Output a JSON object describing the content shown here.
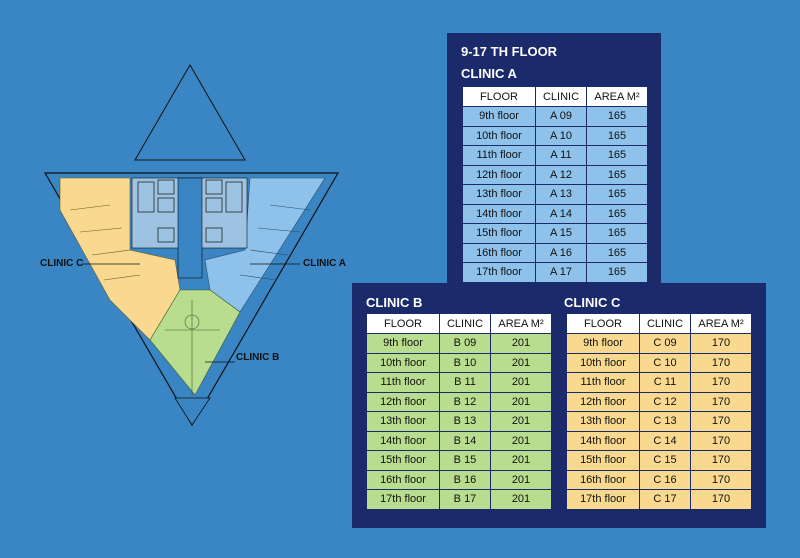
{
  "floor_heading": "9-17 TH FLOOR",
  "labels": {
    "clinic_a": "CLINIC A",
    "clinic_b": "CLINIC B",
    "clinic_c": "CLINIC C"
  },
  "columns": {
    "floor": "FLOOR",
    "clinic": "CLINIC",
    "area": "AREA M²"
  },
  "colors": {
    "background": "#3a86c4",
    "panel": "#1b2a6b",
    "clinic_a": "#8ec2ea",
    "clinic_b": "#b9dd8e",
    "clinic_c": "#f9d98f"
  },
  "clinic_a": {
    "title": "CLINIC A",
    "rows": [
      {
        "floor": "9th floor",
        "clinic": "A 09",
        "area": "165"
      },
      {
        "floor": "10th floor",
        "clinic": "A 10",
        "area": "165"
      },
      {
        "floor": "11th floor",
        "clinic": "A 11",
        "area": "165"
      },
      {
        "floor": "12th floor",
        "clinic": "A 12",
        "area": "165"
      },
      {
        "floor": "13th floor",
        "clinic": "A 13",
        "area": "165"
      },
      {
        "floor": "14th floor",
        "clinic": "A 14",
        "area": "165"
      },
      {
        "floor": "15th floor",
        "clinic": "A 15",
        "area": "165"
      },
      {
        "floor": "16th floor",
        "clinic": "A 16",
        "area": "165"
      },
      {
        "floor": "17th floor",
        "clinic": "A 17",
        "area": "165"
      }
    ]
  },
  "clinic_b": {
    "title": "CLINIC B",
    "rows": [
      {
        "floor": "9th floor",
        "clinic": "B 09",
        "area": "201"
      },
      {
        "floor": "10th floor",
        "clinic": "B 10",
        "area": "201"
      },
      {
        "floor": "11th floor",
        "clinic": "B 11",
        "area": "201"
      },
      {
        "floor": "12th floor",
        "clinic": "B 12",
        "area": "201"
      },
      {
        "floor": "13th floor",
        "clinic": "B 13",
        "area": "201"
      },
      {
        "floor": "14th floor",
        "clinic": "B 14",
        "area": "201"
      },
      {
        "floor": "15th floor",
        "clinic": "B 15",
        "area": "201"
      },
      {
        "floor": "16th floor",
        "clinic": "B 16",
        "area": "201"
      },
      {
        "floor": "17th floor",
        "clinic": "B 17",
        "area": "201"
      }
    ]
  },
  "clinic_c": {
    "title": "CLINIC C",
    "rows": [
      {
        "floor": "9th floor",
        "clinic": "C 09",
        "area": "170"
      },
      {
        "floor": "10th floor",
        "clinic": "C 10",
        "area": "170"
      },
      {
        "floor": "11th floor",
        "clinic": "C 11",
        "area": "170"
      },
      {
        "floor": "12th floor",
        "clinic": "C 12",
        "area": "170"
      },
      {
        "floor": "13th floor",
        "clinic": "C 13",
        "area": "170"
      },
      {
        "floor": "14th floor",
        "clinic": "C 14",
        "area": "170"
      },
      {
        "floor": "15th floor",
        "clinic": "C 15",
        "area": "170"
      },
      {
        "floor": "16th floor",
        "clinic": "C 16",
        "area": "170"
      },
      {
        "floor": "17th floor",
        "clinic": "C 17",
        "area": "170"
      }
    ]
  }
}
